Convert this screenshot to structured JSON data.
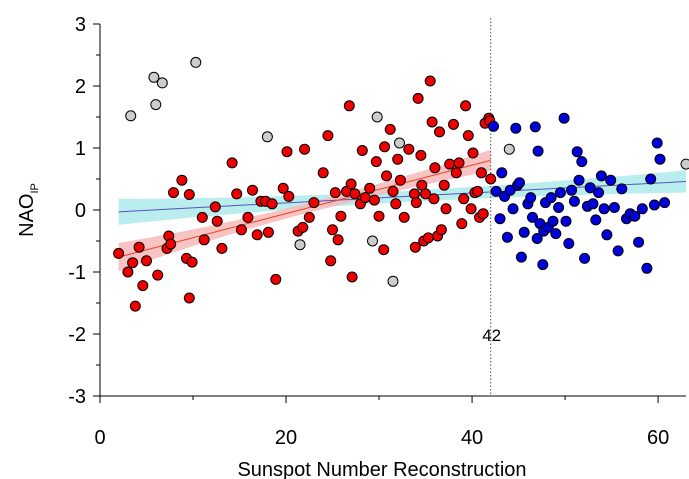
{
  "chart_data": {
    "type": "scatter",
    "xlabel": "Sunspot Number Reconstruction",
    "ylabel_main": "NAO",
    "ylabel_sub": "IP",
    "xlim": [
      0,
      63
    ],
    "ylim": [
      -3,
      3
    ],
    "xticks": [
      0,
      20,
      40,
      60
    ],
    "yticks": [
      -3,
      -2,
      -1,
      0,
      1,
      2,
      3
    ],
    "xtick_labels": [
      "0",
      "20",
      "40",
      "60"
    ],
    "ytick_labels": [
      "-3",
      "-2",
      "-1",
      "0",
      "1",
      "2",
      "3"
    ],
    "threshold": {
      "x": 42,
      "label": "42"
    },
    "colors": {
      "low": "#ee0000",
      "high": "#0000dd",
      "other": "#cccccc",
      "low_fit": "#ee4422",
      "low_band": "#f7b8b8",
      "high_fit": "#5555bb",
      "high_band": "#aeeaea"
    },
    "series": [
      {
        "key": "low",
        "points": [
          [
            2.0,
            -0.7
          ],
          [
            3.0,
            -1.0
          ],
          [
            3.5,
            -0.85
          ],
          [
            3.8,
            -1.55
          ],
          [
            4.2,
            -0.6
          ],
          [
            4.6,
            -1.22
          ],
          [
            5.0,
            -0.82
          ],
          [
            6.2,
            -1.05
          ],
          [
            7.2,
            -0.62
          ],
          [
            7.4,
            -0.42
          ],
          [
            7.6,
            -0.55
          ],
          [
            7.9,
            0.28
          ],
          [
            8.8,
            0.48
          ],
          [
            9.3,
            -0.78
          ],
          [
            9.6,
            0.25
          ],
          [
            9.9,
            -0.84
          ],
          [
            9.6,
            -1.42
          ],
          [
            11.0,
            -0.12
          ],
          [
            11.2,
            -0.48
          ],
          [
            12.4,
            0.05
          ],
          [
            12.6,
            -0.18
          ],
          [
            13.1,
            -0.62
          ],
          [
            14.2,
            0.76
          ],
          [
            14.7,
            0.26
          ],
          [
            15.2,
            -0.32
          ],
          [
            15.9,
            -0.12
          ],
          [
            16.4,
            0.32
          ],
          [
            16.9,
            -0.4
          ],
          [
            17.3,
            0.14
          ],
          [
            17.8,
            0.14
          ],
          [
            18.1,
            -0.36
          ],
          [
            18.5,
            0.1
          ],
          [
            18.9,
            -1.12
          ],
          [
            19.7,
            0.35
          ],
          [
            20.1,
            0.94
          ],
          [
            20.3,
            0.22
          ],
          [
            21.3,
            -0.34
          ],
          [
            21.8,
            -0.28
          ],
          [
            22.0,
            0.98
          ],
          [
            22.5,
            -0.12
          ],
          [
            23.0,
            0.12
          ],
          [
            24.0,
            0.6
          ],
          [
            24.5,
            1.2
          ],
          [
            24.8,
            -0.82
          ],
          [
            25.0,
            -0.32
          ],
          [
            25.3,
            0.28
          ],
          [
            25.6,
            -0.48
          ],
          [
            25.9,
            -0.1
          ],
          [
            26.5,
            0.3
          ],
          [
            26.8,
            1.68
          ],
          [
            27.0,
            0.42
          ],
          [
            27.1,
            -1.08
          ],
          [
            27.4,
            0.26
          ],
          [
            28.2,
            0.96
          ],
          [
            28.0,
            0.1
          ],
          [
            28.5,
            0.2
          ],
          [
            29.0,
            0.35
          ],
          [
            29.5,
            0.16
          ],
          [
            29.7,
            0.78
          ],
          [
            30.0,
            -0.1
          ],
          [
            30.5,
            -0.64
          ],
          [
            30.6,
            1.02
          ],
          [
            30.8,
            0.55
          ],
          [
            31.2,
            1.3
          ],
          [
            31.5,
            0.3
          ],
          [
            31.8,
            0.1
          ],
          [
            32.0,
            0.82
          ],
          [
            32.3,
            0.48
          ],
          [
            32.7,
            -0.12
          ],
          [
            33.2,
            0.98
          ],
          [
            33.8,
            0.26
          ],
          [
            33.9,
            -0.6
          ],
          [
            34.0,
            0.12
          ],
          [
            34.2,
            1.8
          ],
          [
            34.5,
            0.88
          ],
          [
            34.6,
            0.4
          ],
          [
            34.8,
            -0.5
          ],
          [
            35.0,
            0.26
          ],
          [
            35.3,
            -0.45
          ],
          [
            35.5,
            2.08
          ],
          [
            35.7,
            1.42
          ],
          [
            35.9,
            0.18
          ],
          [
            36.0,
            0.68
          ],
          [
            36.3,
            -0.42
          ],
          [
            36.5,
            1.26
          ],
          [
            36.7,
            -0.32
          ],
          [
            37.0,
            0.4
          ],
          [
            37.2,
            0.02
          ],
          [
            37.6,
            0.74
          ],
          [
            38.0,
            1.38
          ],
          [
            38.3,
            0.6
          ],
          [
            38.6,
            0.76
          ],
          [
            38.9,
            -0.22
          ],
          [
            39.1,
            0.18
          ],
          [
            39.3,
            1.68
          ],
          [
            39.6,
            1.2
          ],
          [
            39.9,
            0.02
          ],
          [
            40.1,
            0.92
          ],
          [
            40.3,
            0.28
          ],
          [
            40.6,
            0.3
          ],
          [
            40.8,
            -0.12
          ],
          [
            41.0,
            0.6
          ],
          [
            41.2,
            -0.06
          ],
          [
            41.4,
            1.4
          ],
          [
            41.8,
            1.48
          ],
          [
            41.9,
            1.44
          ],
          [
            42.0,
            0.5
          ]
        ]
      },
      {
        "key": "high",
        "points": [
          [
            42.3,
            1.35
          ],
          [
            42.6,
            0.3
          ],
          [
            43.0,
            -0.14
          ],
          [
            43.2,
            0.6
          ],
          [
            43.5,
            0.22
          ],
          [
            43.8,
            -0.44
          ],
          [
            44.1,
            0.32
          ],
          [
            44.4,
            0.02
          ],
          [
            44.7,
            1.32
          ],
          [
            44.9,
            0.4
          ],
          [
            45.1,
            0.44
          ],
          [
            45.3,
            -0.76
          ],
          [
            45.6,
            -0.36
          ],
          [
            46.0,
            0.1
          ],
          [
            46.3,
            0.2
          ],
          [
            46.5,
            -0.12
          ],
          [
            46.8,
            1.34
          ],
          [
            47.0,
            -0.46
          ],
          [
            47.1,
            0.95
          ],
          [
            47.3,
            -0.22
          ],
          [
            47.6,
            -0.88
          ],
          [
            47.7,
            -0.34
          ],
          [
            47.9,
            0.12
          ],
          [
            48.2,
            -0.28
          ],
          [
            48.5,
            0.2
          ],
          [
            48.7,
            -0.18
          ],
          [
            49.0,
            -0.38
          ],
          [
            49.3,
            0.04
          ],
          [
            49.5,
            0.28
          ],
          [
            49.9,
            1.48
          ],
          [
            50.1,
            -0.18
          ],
          [
            50.4,
            -0.54
          ],
          [
            50.7,
            0.32
          ],
          [
            51.0,
            0.14
          ],
          [
            51.3,
            0.94
          ],
          [
            51.5,
            0.48
          ],
          [
            51.8,
            0.78
          ],
          [
            52.1,
            -0.78
          ],
          [
            52.4,
            0.06
          ],
          [
            52.7,
            0.36
          ],
          [
            53.0,
            0.1
          ],
          [
            53.3,
            -0.16
          ],
          [
            53.6,
            0.28
          ],
          [
            53.9,
            0.55
          ],
          [
            54.2,
            0.02
          ],
          [
            54.5,
            -0.4
          ],
          [
            54.9,
            0.48
          ],
          [
            55.3,
            0.04
          ],
          [
            55.7,
            -0.66
          ],
          [
            56.1,
            0.34
          ],
          [
            56.6,
            -0.14
          ],
          [
            57.0,
            -0.06
          ],
          [
            57.5,
            -0.1
          ],
          [
            57.9,
            -0.52
          ],
          [
            58.3,
            0.02
          ],
          [
            58.8,
            -0.94
          ],
          [
            59.2,
            0.5
          ],
          [
            59.6,
            0.08
          ],
          [
            59.9,
            1.08
          ],
          [
            60.2,
            0.82
          ],
          [
            60.7,
            0.12
          ]
        ]
      },
      {
        "key": "other",
        "points": [
          [
            3.3,
            1.52
          ],
          [
            5.8,
            2.14
          ],
          [
            6.0,
            1.7
          ],
          [
            6.7,
            2.05
          ],
          [
            10.3,
            2.38
          ],
          [
            18.0,
            1.18
          ],
          [
            21.5,
            -0.56
          ],
          [
            29.3,
            -0.5
          ],
          [
            29.8,
            1.5
          ],
          [
            31.5,
            -1.15
          ],
          [
            32.2,
            1.08
          ],
          [
            44.0,
            0.98
          ],
          [
            63.0,
            0.74
          ]
        ]
      }
    ],
    "fit_low": {
      "x": [
        2,
        42
      ],
      "y": [
        -0.76,
        0.8
      ],
      "band_halfwidth_start": 0.23,
      "band_halfwidth_end": 0.17,
      "band_halfwidth_mid": 0.08
    },
    "fit_high": {
      "x": [
        2,
        63
      ],
      "y": [
        -0.03,
        0.46
      ],
      "band_halfwidth_start": 0.21,
      "band_halfwidth_end": 0.18,
      "band_halfwidth_mid": 0.09
    }
  }
}
